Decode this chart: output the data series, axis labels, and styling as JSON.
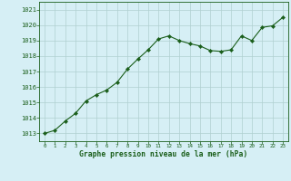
{
  "x": [
    0,
    1,
    2,
    3,
    4,
    5,
    6,
    7,
    8,
    9,
    10,
    11,
    12,
    13,
    14,
    15,
    16,
    17,
    18,
    19,
    20,
    21,
    22,
    23
  ],
  "y": [
    1013.0,
    1013.2,
    1013.8,
    1014.3,
    1015.1,
    1015.5,
    1015.8,
    1016.3,
    1017.15,
    1017.8,
    1018.4,
    1019.1,
    1019.3,
    1019.0,
    1018.8,
    1018.65,
    1018.35,
    1018.3,
    1018.4,
    1019.3,
    1019.0,
    1019.85,
    1019.95,
    1020.5
  ],
  "line_color": "#1a5e1a",
  "marker_color": "#1a5e1a",
  "bg_color": "#d6eff5",
  "grid_color": "#b0d0d0",
  "xlabel": "Graphe pression niveau de la mer (hPa)",
  "xlabel_color": "#1a5e1a",
  "tick_color": "#1a5e1a",
  "ylim_min": 1012.5,
  "ylim_max": 1021.5,
  "ytick_start": 1013,
  "ytick_end": 1021,
  "xtick_labels": [
    "0",
    "1",
    "2",
    "3",
    "4",
    "5",
    "6",
    "7",
    "8",
    "9",
    "10",
    "11",
    "12",
    "13",
    "14",
    "15",
    "16",
    "17",
    "18",
    "19",
    "20",
    "21",
    "22",
    "23"
  ]
}
